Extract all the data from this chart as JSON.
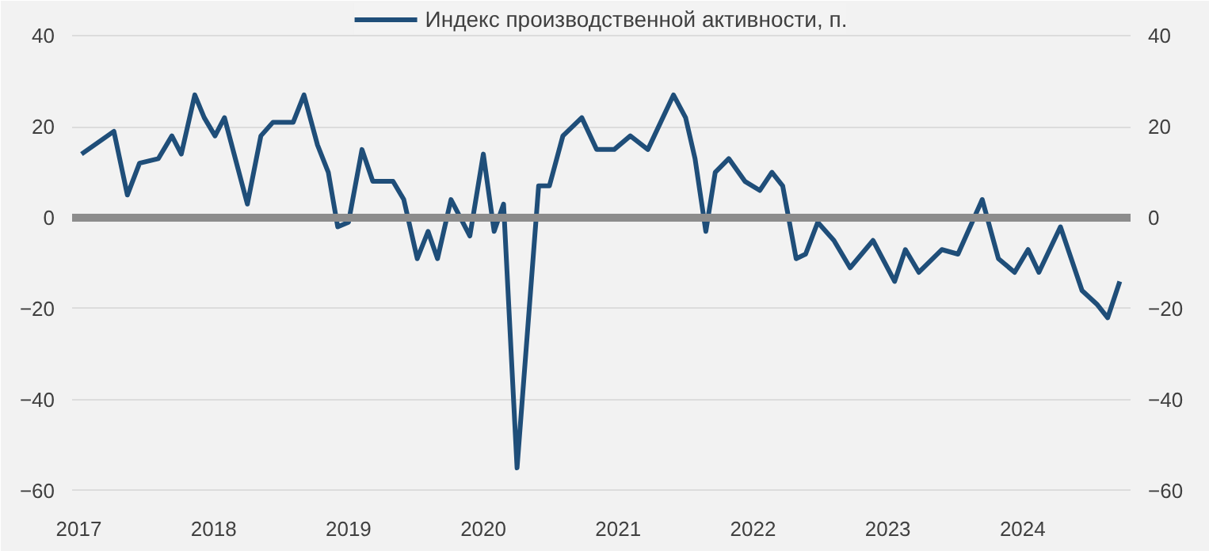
{
  "chart_data": {
    "type": "line",
    "x": [
      2017.02,
      2017.26,
      2017.36,
      2017.45,
      2017.59,
      2017.69,
      2017.76,
      2017.86,
      2017.93,
      2018.01,
      2018.08,
      2018.25,
      2018.35,
      2018.44,
      2018.59,
      2018.67,
      2018.77,
      2018.85,
      2018.92,
      2019.0,
      2019.1,
      2019.18,
      2019.33,
      2019.41,
      2019.51,
      2019.59,
      2019.66,
      2019.76,
      2019.9,
      2020.0,
      2020.08,
      2020.15,
      2020.25,
      2020.41,
      2020.49,
      2020.59,
      2020.73,
      2020.84,
      2020.97,
      2021.09,
      2021.22,
      2021.41,
      2021.5,
      2021.57,
      2021.65,
      2021.72,
      2021.82,
      2021.94,
      2022.05,
      2022.14,
      2022.22,
      2022.32,
      2022.39,
      2022.48,
      2022.6,
      2022.72,
      2022.89,
      2023.05,
      2023.13,
      2023.23,
      2023.4,
      2023.52,
      2023.7,
      2023.82,
      2023.94,
      2024.04,
      2024.12,
      2024.28,
      2024.44,
      2024.55,
      2024.63,
      2024.72
    ],
    "series": [
      {
        "name": "Индекс производственной активности, п.",
        "color": "#1f4e79",
        "values": [
          14,
          19,
          5,
          12,
          13,
          18,
          14,
          27,
          22,
          18,
          22,
          3,
          18,
          21,
          21,
          27,
          16,
          10,
          -2,
          -1,
          15,
          8,
          8,
          4,
          -9,
          -3,
          -9,
          4,
          -4,
          14,
          -3,
          3,
          -55,
          7,
          7,
          18,
          22,
          15,
          15,
          18,
          15,
          27,
          22,
          13,
          -3,
          10,
          13,
          8,
          6,
          10,
          7,
          -9,
          -8,
          -1,
          -5,
          -11,
          -5,
          -14,
          -7,
          -12,
          -7,
          -8,
          4,
          -9,
          -12,
          -7,
          -12,
          -2,
          -16,
          -19,
          -22,
          -14
        ]
      }
    ],
    "xlim": [
      2016.95,
      2024.8
    ],
    "xticks": [
      2017,
      2018,
      2019,
      2020,
      2021,
      2022,
      2023,
      2024
    ],
    "ylim": [
      -63,
      47
    ],
    "yticks": [
      -60,
      -40,
      -20,
      0,
      20,
      40
    ],
    "y2lim": [
      -63,
      47
    ],
    "y2ticks": [
      -60,
      -40,
      -20,
      0,
      20,
      40
    ],
    "ref_lines": [
      {
        "axis": "y",
        "value": 0,
        "color": "#8c8c8c"
      }
    ],
    "grid": "y",
    "legend": "top",
    "line_style": "solid",
    "marker": "none"
  }
}
